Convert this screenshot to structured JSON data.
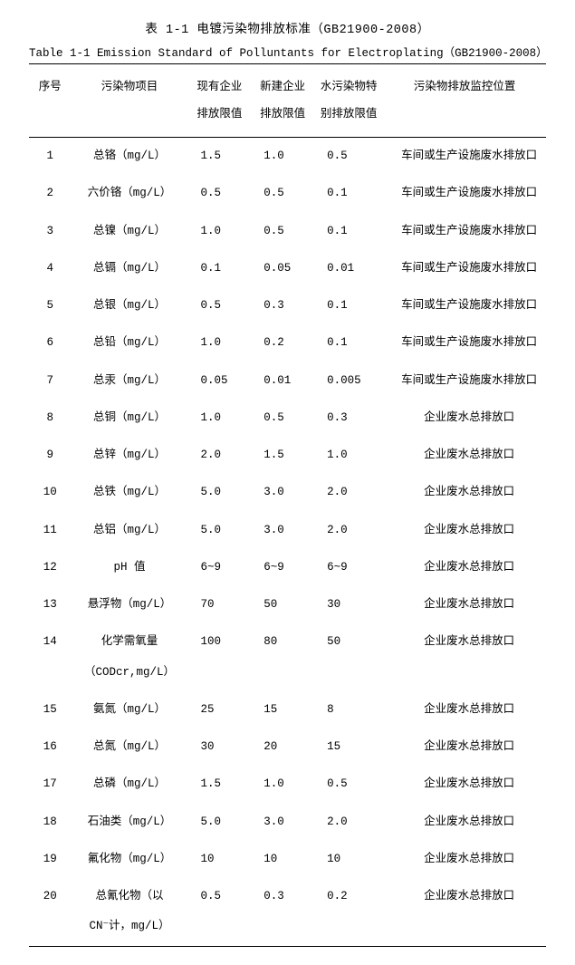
{
  "title_cn": "表 1-1 电镀污染物排放标准（GB21900-2008）",
  "title_en": "Table 1-1 Emission Standard of Polluntants for Electroplating（GB21900-2008）",
  "columns": {
    "seq": "序号",
    "item": "污染物项目",
    "existing_line1": "现有企业",
    "existing_line2": "排放限值",
    "new_line1": "新建企业",
    "new_line2": "排放限值",
    "special_line1": "水污染物特",
    "special_line2": "别排放限值",
    "location": "污染物排放监控位置"
  },
  "rows": [
    {
      "seq": "1",
      "item": "总铬（mg/L）",
      "v1": "1.5",
      "v2": "1.0",
      "v3": "0.5",
      "loc": "车间或生产设施废水排放口"
    },
    {
      "seq": "2",
      "item": "六价铬（mg/L）",
      "v1": "0.5",
      "v2": "0.5",
      "v3": "0.1",
      "loc": "车间或生产设施废水排放口"
    },
    {
      "seq": "3",
      "item": "总镍（mg/L）",
      "v1": "1.0",
      "v2": "0.5",
      "v3": "0.1",
      "loc": "车间或生产设施废水排放口"
    },
    {
      "seq": "4",
      "item": "总镉（mg/L）",
      "v1": "0.1",
      "v2": "0.05",
      "v3": "0.01",
      "loc": "车间或生产设施废水排放口"
    },
    {
      "seq": "5",
      "item": "总银（mg/L）",
      "v1": "0.5",
      "v2": "0.3",
      "v3": "0.1",
      "loc": "车间或生产设施废水排放口"
    },
    {
      "seq": "6",
      "item": "总铅（mg/L）",
      "v1": "1.0",
      "v2": "0.2",
      "v3": "0.1",
      "loc": "车间或生产设施废水排放口"
    },
    {
      "seq": "7",
      "item": "总汞（mg/L）",
      "v1": "0.05",
      "v2": "0.01",
      "v3": "0.005",
      "loc": "车间或生产设施废水排放口"
    },
    {
      "seq": "8",
      "item": "总铜（mg/L）",
      "v1": "1.0",
      "v2": "0.5",
      "v3": "0.3",
      "loc": "企业废水总排放口"
    },
    {
      "seq": "9",
      "item": "总锌（mg/L）",
      "v1": "2.0",
      "v2": "1.5",
      "v3": "1.0",
      "loc": "企业废水总排放口"
    },
    {
      "seq": "10",
      "item": "总铁（mg/L）",
      "v1": "5.0",
      "v2": "3.0",
      "v3": "2.0",
      "loc": "企业废水总排放口"
    },
    {
      "seq": "11",
      "item": "总铝（mg/L）",
      "v1": "5.0",
      "v2": "3.0",
      "v3": "2.0",
      "loc": "企业废水总排放口"
    },
    {
      "seq": "12",
      "item": "pH 值",
      "v1": "6~9",
      "v2": "6~9",
      "v3": "6~9",
      "loc": "企业废水总排放口"
    },
    {
      "seq": "13",
      "item": "悬浮物（mg/L）",
      "v1": "70",
      "v2": "50",
      "v3": "30",
      "loc": "企业废水总排放口"
    },
    {
      "seq": "14",
      "item_line1": "化学需氧量",
      "item_line2": "（CODcr,mg/L）",
      "v1": "100",
      "v2": "80",
      "v3": "50",
      "loc": "企业废水总排放口"
    },
    {
      "seq": "15",
      "item": "氨氮（mg/L）",
      "v1": "25",
      "v2": "15",
      "v3": "8",
      "loc": "企业废水总排放口"
    },
    {
      "seq": "16",
      "item": "总氮（mg/L）",
      "v1": "30",
      "v2": "20",
      "v3": "15",
      "loc": "企业废水总排放口"
    },
    {
      "seq": "17",
      "item": "总磷（mg/L）",
      "v1": "1.5",
      "v2": "1.0",
      "v3": "0.5",
      "loc": "企业废水总排放口"
    },
    {
      "seq": "18",
      "item": "石油类（mg/L）",
      "v1": "5.0",
      "v2": "3.0",
      "v3": "2.0",
      "loc": "企业废水总排放口"
    },
    {
      "seq": "19",
      "item": "氟化物（mg/L）",
      "v1": "10",
      "v2": "10",
      "v3": "10",
      "loc": "企业废水总排放口"
    },
    {
      "seq": "20",
      "item_line1": "总氰化物（以",
      "item_line2": "CN⁻计，mg/L）",
      "v1": "0.5",
      "v2": "0.3",
      "v3": "0.2",
      "loc": "企业废水总排放口"
    }
  ]
}
